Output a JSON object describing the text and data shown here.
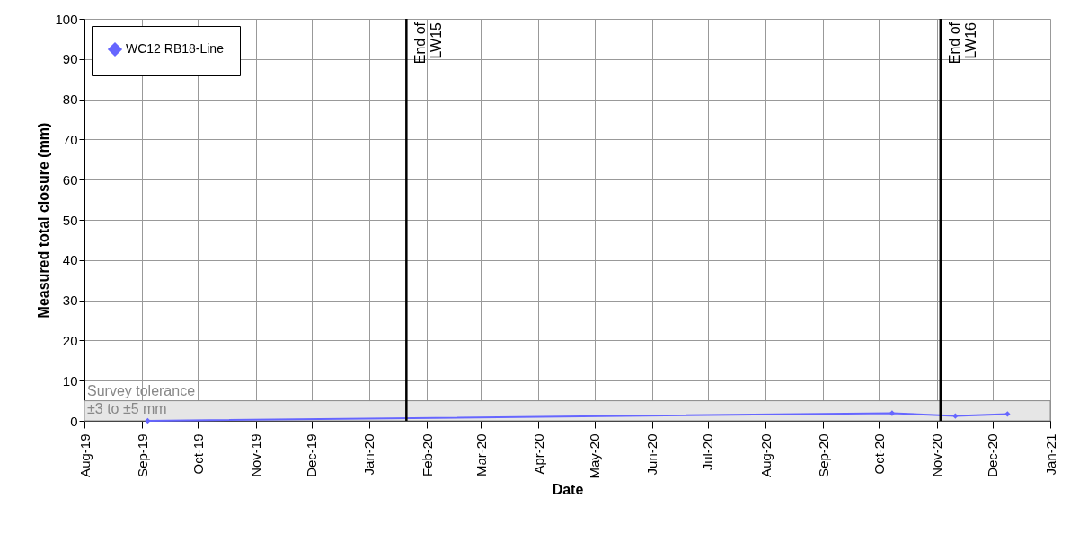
{
  "chart_data": {
    "type": "line",
    "xlabel": "Date",
    "ylabel": "Measured total closure (mm)",
    "x": [
      "2019-09-04",
      "2020-10-08",
      "2020-11-11",
      "2020-12-09"
    ],
    "series": [
      {
        "name": "WC12 RB18-Line",
        "color": "#6666ff",
        "values": [
          0,
          1.9,
          1.2,
          1.7
        ]
      }
    ],
    "marker": "diamond",
    "line_style": "solid",
    "grid": true,
    "legend": "top left",
    "xlim": [
      "2019-08-01",
      "2021-01-01"
    ],
    "xticks": [
      {
        "value": "2019-08-01",
        "label": "Aug-19"
      },
      {
        "value": "2019-09-01",
        "label": "Sep-19"
      },
      {
        "value": "2019-10-01",
        "label": "Oct-19"
      },
      {
        "value": "2019-11-01",
        "label": "Nov-19"
      },
      {
        "value": "2019-12-01",
        "label": "Dec-19"
      },
      {
        "value": "2020-01-01",
        "label": "Jan-20"
      },
      {
        "value": "2020-02-01",
        "label": "Feb-20"
      },
      {
        "value": "2020-03-01",
        "label": "Mar-20"
      },
      {
        "value": "2020-04-01",
        "label": "Apr-20"
      },
      {
        "value": "2020-05-01",
        "label": "May-20"
      },
      {
        "value": "2020-06-01",
        "label": "Jun-20"
      },
      {
        "value": "2020-07-01",
        "label": "Jul-20"
      },
      {
        "value": "2020-08-01",
        "label": "Aug-20"
      },
      {
        "value": "2020-09-01",
        "label": "Sep-20"
      },
      {
        "value": "2020-10-01",
        "label": "Oct-20"
      },
      {
        "value": "2020-11-01",
        "label": "Nov-20"
      },
      {
        "value": "2020-12-01",
        "label": "Dec-20"
      },
      {
        "value": "2021-01-01",
        "label": "Jan-21"
      }
    ],
    "ylim": [
      0,
      100
    ],
    "yticks": [
      0,
      10,
      20,
      30,
      40,
      50,
      60,
      70,
      80,
      90,
      100
    ],
    "ref_lines": [
      {
        "axis": "x",
        "value": "2020-01-21",
        "label": "End of\nLW15",
        "color": "#000000"
      },
      {
        "axis": "x",
        "value": "2020-11-03",
        "label": "End of\nLW16",
        "color": "#000000"
      }
    ],
    "bands": [
      {
        "axis": "y",
        "from": 0,
        "to": 5,
        "label": "Survey tolerance\n±3 to ±5 mm",
        "color": "#e6e6e6"
      }
    ]
  }
}
